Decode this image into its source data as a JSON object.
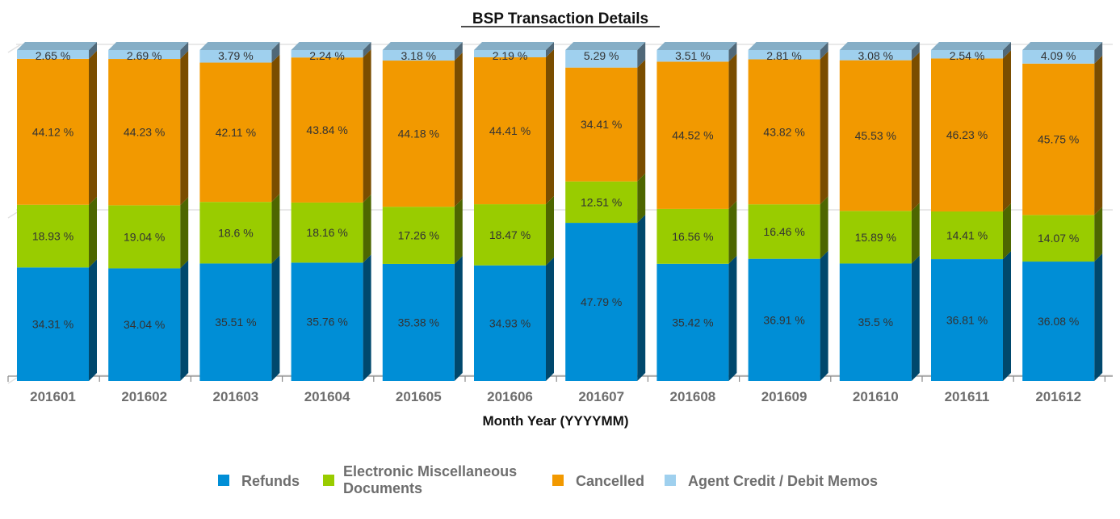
{
  "chart_data": {
    "type": "bar",
    "stacked": true,
    "title": "BSP Transaction Details",
    "xlabel": "Month Year (YYYYMM)",
    "ylabel": "",
    "ylim": [
      0,
      100
    ],
    "grid": true,
    "legend_position": "bottom",
    "categories": [
      "201601",
      "201602",
      "201603",
      "201604",
      "201605",
      "201606",
      "201607",
      "201608",
      "201609",
      "201610",
      "201611",
      "201612"
    ],
    "series": [
      {
        "name": "Refunds",
        "color": "#008ed6",
        "side_color": "#00486d",
        "values": [
          34.31,
          34.04,
          35.51,
          35.76,
          35.38,
          34.93,
          47.79,
          35.42,
          36.91,
          35.5,
          36.81,
          36.08
        ],
        "labels": [
          "34.31 %",
          "34.04 %",
          "35.51 %",
          "35.76 %",
          "35.38 %",
          "34.93 %",
          "47.79 %",
          "35.42 %",
          "36.91 %",
          "35.5 %",
          "36.81 %",
          "36.08 %"
        ]
      },
      {
        "name": "Electronic Miscellaneous Documents",
        "legend_lines": [
          "Electronic Miscellaneous",
          "Documents"
        ],
        "color": "#99cc00",
        "side_color": "#4d6600",
        "values": [
          18.93,
          19.04,
          18.6,
          18.16,
          17.26,
          18.47,
          12.51,
          16.56,
          16.46,
          15.89,
          14.41,
          14.07
        ],
        "labels": [
          "18.93 %",
          "19.04 %",
          "18.6 %",
          "18.16 %",
          "17.26 %",
          "18.47 %",
          "12.51 %",
          "16.56 %",
          "16.46 %",
          "15.89 %",
          "14.41 %",
          "14.07 %"
        ]
      },
      {
        "name": "Cancelled",
        "color": "#f29900",
        "side_color": "#7a4d00",
        "values": [
          44.12,
          44.23,
          42.11,
          43.84,
          44.18,
          44.41,
          34.41,
          44.52,
          43.82,
          45.53,
          46.23,
          45.75
        ],
        "labels": [
          "44.12 %",
          "44.23 %",
          "42.11 %",
          "43.84 %",
          "44.18 %",
          "44.41 %",
          "34.41 %",
          "44.52 %",
          "43.82 %",
          "45.53 %",
          "46.23 %",
          "45.75 %"
        ]
      },
      {
        "name": "Agent Credit / Debit Memos",
        "color": "#9fd0ee",
        "side_color": "#506878",
        "values": [
          2.65,
          2.69,
          3.79,
          2.24,
          3.18,
          2.19,
          5.29,
          3.51,
          2.81,
          3.08,
          2.54,
          4.09
        ],
        "labels": [
          "2.65 %",
          "2.69 %",
          "3.79 %",
          "2.24 %",
          "3.18 %",
          "2.19 %",
          "5.29 %",
          "3.51 %",
          "2.81 %",
          "3.08 %",
          "2.54 %",
          "4.09 %"
        ]
      }
    ]
  }
}
